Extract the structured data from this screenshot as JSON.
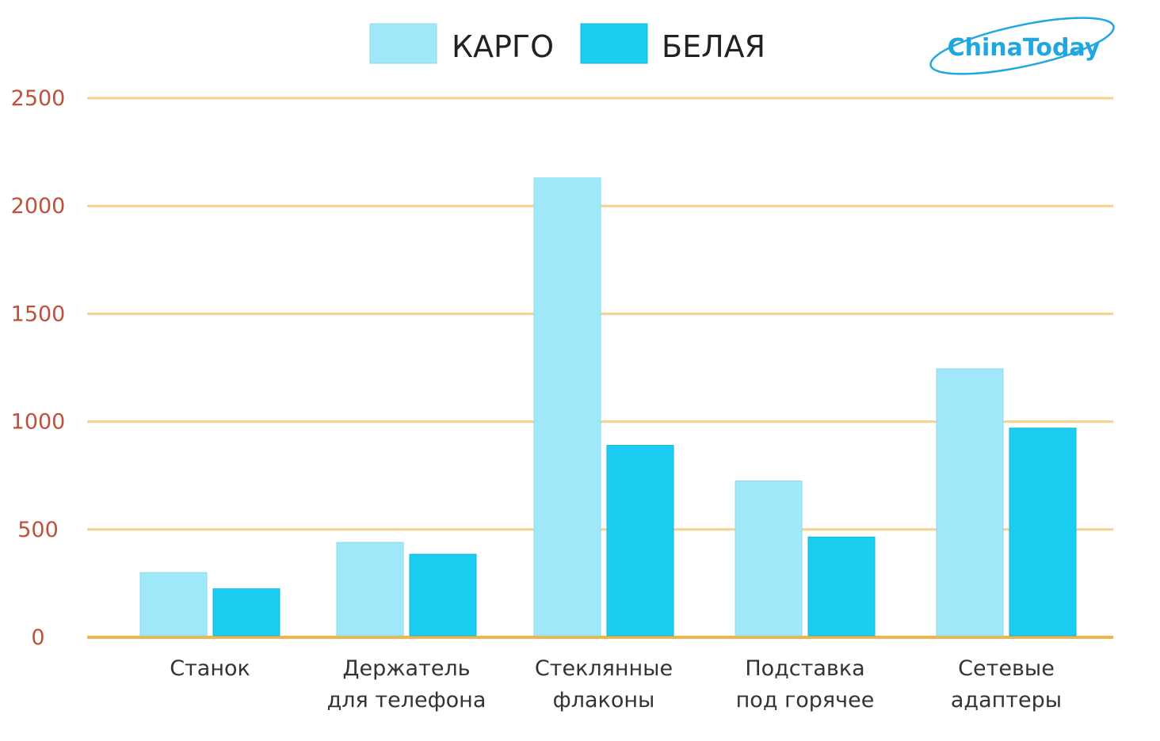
{
  "brand": {
    "logo_text": "ChinaToday",
    "logo_color": "#1fa7e0"
  },
  "colors": {
    "grid": "#f7d28c",
    "baseline": "#f2b44a",
    "ytick": "#c0503a"
  },
  "chart_data": {
    "type": "bar",
    "categories": [
      [
        "Станок"
      ],
      [
        "Держатель",
        "для телефона"
      ],
      [
        "Стеклянные",
        "флаконы"
      ],
      [
        "Подставка",
        "под горячее"
      ],
      [
        "Сетевые",
        "адаптеры"
      ]
    ],
    "series": [
      {
        "name": "КАРГО",
        "color": "#9fe9fa",
        "values": [
          300,
          440,
          2130,
          725,
          1245
        ]
      },
      {
        "name": "БЕЛАЯ",
        "color": "#1ccdf2",
        "values": [
          225,
          385,
          890,
          465,
          970
        ]
      }
    ],
    "ylim": [
      0,
      2500
    ],
    "yticks": [
      0,
      500,
      1000,
      1500,
      2000,
      2500
    ],
    "grid": true,
    "legend_position": "top-center"
  }
}
